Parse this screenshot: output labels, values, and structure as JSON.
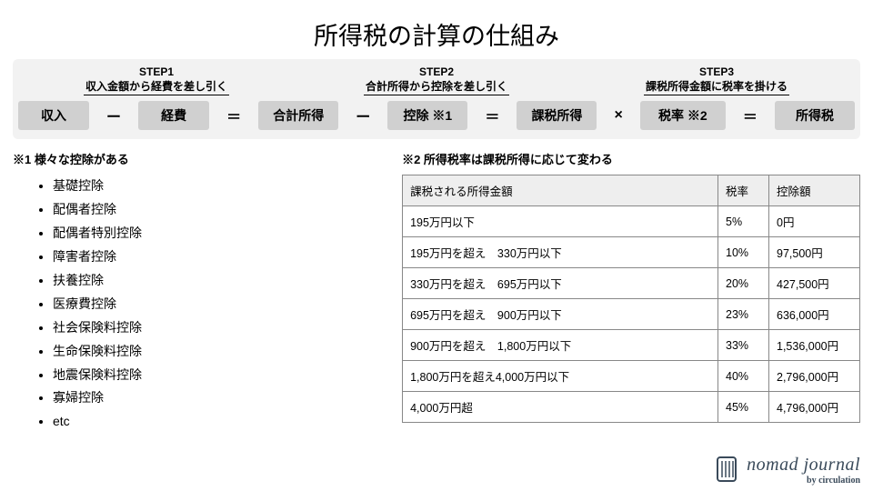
{
  "title": "所得税の計算の仕組み",
  "steps": [
    {
      "label": "STEP1",
      "desc": "収入金額から経費を差し引く"
    },
    {
      "label": "STEP2",
      "desc": "合計所得から控除を差し引く"
    },
    {
      "label": "STEP3",
      "desc": "課税所得金額に税率を掛ける"
    }
  ],
  "formula": {
    "boxes": [
      "収入",
      "経費",
      "合計所得",
      "控除 ※1",
      "課税所得",
      "税率 ※2",
      "所得税"
    ],
    "ops": [
      "ー",
      "＝",
      "ー",
      "＝",
      "×",
      "＝"
    ]
  },
  "note1": {
    "title": "※1 様々な控除がある",
    "items": [
      "基礎控除",
      "配偶者控除",
      "配偶者特別控除",
      "障害者控除",
      "扶養控除",
      "医療費控除",
      "社会保険料控除",
      "生命保険料控除",
      "地震保険料控除",
      "寡婦控除",
      "etc"
    ]
  },
  "note2": {
    "title": "※2 所得税率は課税所得に応じて変わる",
    "columns": [
      "課税される所得金額",
      "税率",
      "控除額"
    ],
    "rows": [
      [
        "195万円以下",
        "5%",
        "0円"
      ],
      [
        "195万円を超え　330万円以下",
        "10%",
        "97,500円"
      ],
      [
        "330万円を超え　695万円以下",
        "20%",
        "427,500円"
      ],
      [
        "695万円を超え　900万円以下",
        "23%",
        "636,000円"
      ],
      [
        "900万円を超え　1,800万円以下",
        "33%",
        "1,536,000円"
      ],
      [
        "1,800万円を超え4,000万円以下",
        "40%",
        "2,796,000円"
      ],
      [
        "4,000万円超",
        "45%",
        "4,796,000円"
      ]
    ]
  },
  "logo": {
    "brand": "nomad journal",
    "byline": "by circulation"
  },
  "colors": {
    "box_bg": "#d0d0d0",
    "steps_bg": "#f2f2f2",
    "table_header_bg": "#eeeeee",
    "border": "#888888",
    "logo": "#3a4a5a"
  }
}
